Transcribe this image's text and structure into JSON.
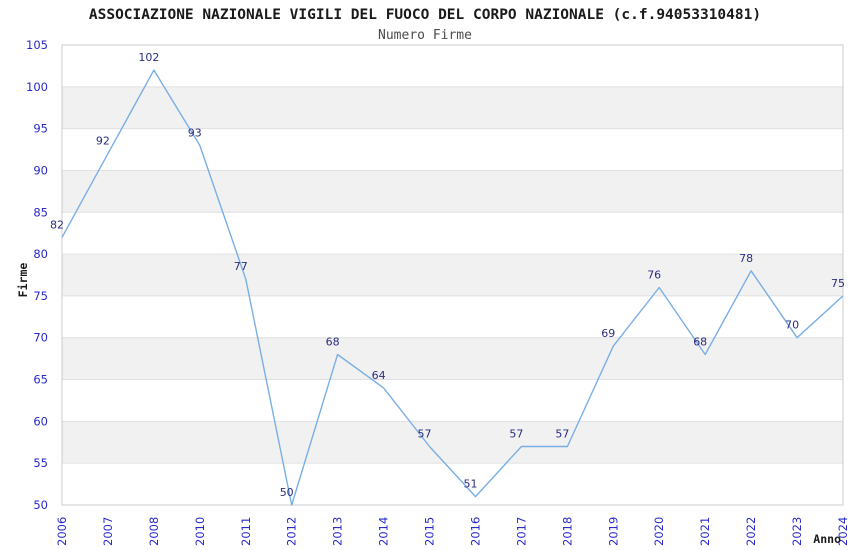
{
  "page": {
    "title": "ASSOCIAZIONE NAZIONALE VIGILI DEL FUOCO DEL CORPO NAZIONALE (c.f.94053310481)",
    "subtitle": "Numero Firme"
  },
  "chart_data": {
    "type": "line",
    "title": "ASSOCIAZIONE NAZIONALE VIGILI DEL FUOCO DEL CORPO NAZIONALE (c.f.94053310481)",
    "subtitle": "Numero Firme",
    "xlabel": "Anno",
    "ylabel": "Firme",
    "categories": [
      "2006",
      "2007",
      "2008",
      "2010",
      "2011",
      "2012",
      "2013",
      "2014",
      "2015",
      "2016",
      "2017",
      "2018",
      "2019",
      "2020",
      "2021",
      "2022",
      "2023",
      "2024"
    ],
    "values": [
      82,
      92,
      102,
      93,
      77,
      50,
      68,
      64,
      57,
      51,
      57,
      57,
      69,
      76,
      68,
      78,
      70,
      75
    ],
    "ylim": [
      50,
      105
    ],
    "ytick_step": 5,
    "yticks": [
      50,
      55,
      60,
      65,
      70,
      75,
      80,
      85,
      90,
      95,
      100,
      105
    ],
    "grid": "horizontal-bands-alternating",
    "legend": "none",
    "markers": "none",
    "colors": {
      "line": "#79afe5",
      "data_label": "#2b2d7e",
      "tick_label": "#2929cc",
      "band_fill": "#f1f1f1",
      "gridline": "#e0e0e0",
      "plot_border": "#cccccc",
      "title": "#1a1a1a",
      "subtitle": "#4d4d4d",
      "background": "#ffffff"
    }
  }
}
